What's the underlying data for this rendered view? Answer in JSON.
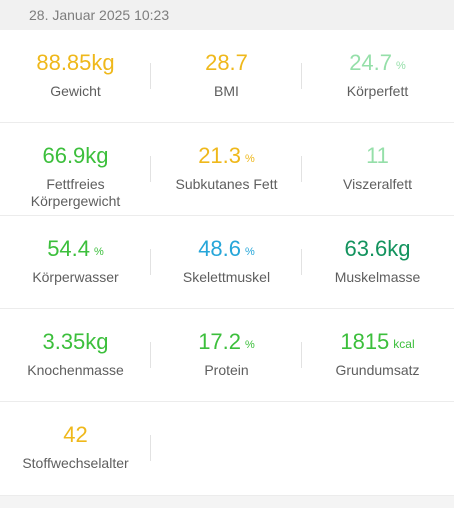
{
  "header": {
    "date": "28. Januar 2025 10:23"
  },
  "colors": {
    "yellow": "#efb81b",
    "light_green": "#95dfa9",
    "green": "#3cbf3c",
    "blue": "#26a6d9",
    "dark_green": "#13935e"
  },
  "metrics": [
    {
      "value": "88.85kg",
      "unit": "",
      "label": "Gewicht",
      "color": "yellow"
    },
    {
      "value": "28.7",
      "unit": "",
      "label": "BMI",
      "color": "yellow"
    },
    {
      "value": "24.7",
      "unit": "%",
      "label": "Körperfett",
      "color": "light_green"
    },
    {
      "value": "66.9kg",
      "unit": "",
      "label": "Fettfreies Körpergewicht",
      "color": "green"
    },
    {
      "value": "21.3",
      "unit": "%",
      "label": "Subkutanes Fett",
      "color": "yellow"
    },
    {
      "value": "11",
      "unit": "",
      "label": "Viszeralfett",
      "color": "light_green"
    },
    {
      "value": "54.4",
      "unit": "%",
      "label": "Körperwasser",
      "color": "green"
    },
    {
      "value": "48.6",
      "unit": "%",
      "label": "Skelettmuskel",
      "color": "blue"
    },
    {
      "value": "63.6kg",
      "unit": "",
      "label": "Muskelmasse",
      "color": "dark_green"
    },
    {
      "value": "3.35kg",
      "unit": "",
      "label": "Knochenmasse",
      "color": "green"
    },
    {
      "value": "17.2",
      "unit": "%",
      "label": "Protein",
      "color": "green"
    },
    {
      "value": "1815",
      "unit": "kcal",
      "label": "Grundumsatz",
      "color": "green"
    },
    {
      "value": "42",
      "unit": "",
      "label": "Stoffwechselalter",
      "color": "yellow"
    }
  ]
}
